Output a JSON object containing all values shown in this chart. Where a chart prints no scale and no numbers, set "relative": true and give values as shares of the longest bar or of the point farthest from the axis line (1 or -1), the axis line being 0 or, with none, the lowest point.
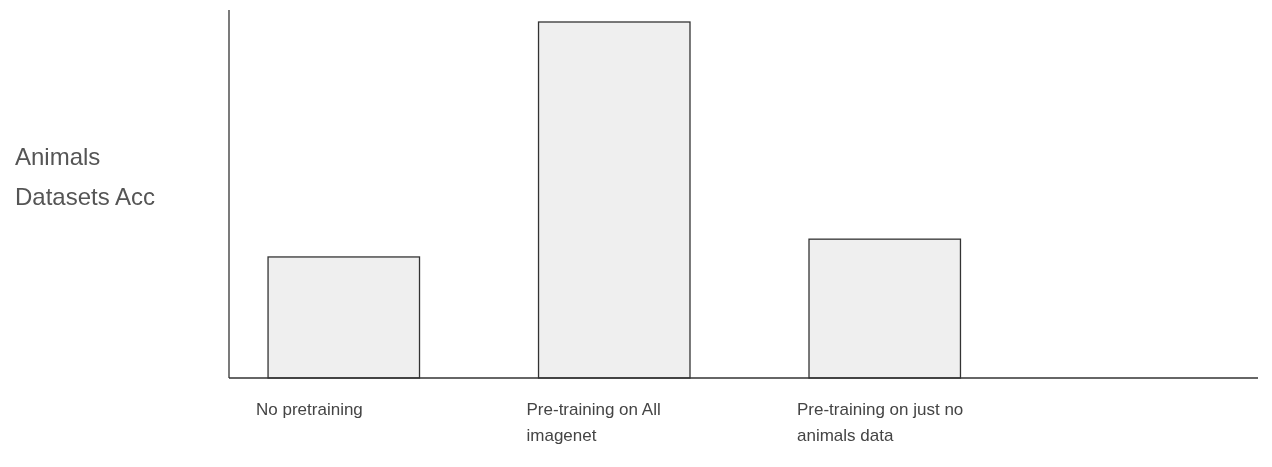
{
  "chart_data": {
    "type": "bar",
    "ylabel": "Animals Datasets Acc",
    "categories": [
      "No pretraining",
      "Pre-training on All imagenet",
      "Pre-training on just no animals data"
    ],
    "values": [
      0.34,
      1,
      0.39
    ],
    "color": "#efefef",
    "relative": true
  }
}
